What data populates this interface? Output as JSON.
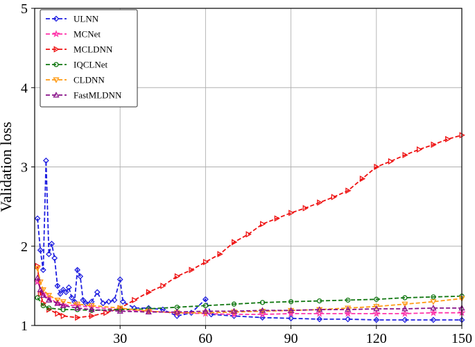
{
  "chart_data": {
    "type": "line",
    "title": "",
    "xlabel": "",
    "ylabel": "Validation loss",
    "xlim": [
      0,
      150
    ],
    "ylim": [
      1,
      5
    ],
    "xticks": [
      30,
      60,
      90,
      120,
      150
    ],
    "yticks": [
      1,
      2,
      3,
      4,
      5
    ],
    "x_tick_labels": [
      "30",
      "60",
      "90",
      "120",
      "150"
    ],
    "y_tick_labels": [
      "1",
      "2",
      "3",
      "4",
      "5"
    ],
    "grid": true,
    "legend_position": "top-left",
    "series": [
      {
        "name": "ULNN",
        "color": "#1f1fe0",
        "marker": "diamond",
        "points": [
          [
            1,
            2.35
          ],
          [
            2,
            1.95
          ],
          [
            3,
            1.7
          ],
          [
            4,
            3.08
          ],
          [
            5,
            1.9
          ],
          [
            6,
            2.03
          ],
          [
            7,
            1.85
          ],
          [
            8,
            1.5
          ],
          [
            9,
            1.4
          ],
          [
            10,
            1.45
          ],
          [
            11,
            1.42
          ],
          [
            12,
            1.48
          ],
          [
            13,
            1.35
          ],
          [
            14,
            1.3
          ],
          [
            15,
            1.7
          ],
          [
            16,
            1.62
          ],
          [
            17,
            1.32
          ],
          [
            18,
            1.28
          ],
          [
            20,
            1.3
          ],
          [
            22,
            1.42
          ],
          [
            24,
            1.28
          ],
          [
            26,
            1.3
          ],
          [
            28,
            1.32
          ],
          [
            30,
            1.58
          ],
          [
            31,
            1.3
          ],
          [
            35,
            1.22
          ],
          [
            40,
            1.22
          ],
          [
            45,
            1.2
          ],
          [
            50,
            1.12
          ],
          [
            55,
            1.16
          ],
          [
            60,
            1.33
          ],
          [
            62,
            1.14
          ],
          [
            70,
            1.12
          ],
          [
            80,
            1.1
          ],
          [
            90,
            1.09
          ],
          [
            100,
            1.08
          ],
          [
            110,
            1.08
          ],
          [
            120,
            1.07
          ],
          [
            130,
            1.07
          ],
          [
            140,
            1.07
          ],
          [
            150,
            1.07
          ]
        ]
      },
      {
        "name": "MCNet",
        "color": "#ff33aa",
        "marker": "star",
        "points": [
          [
            1,
            1.55
          ],
          [
            3,
            1.4
          ],
          [
            5,
            1.35
          ],
          [
            8,
            1.28
          ],
          [
            10,
            1.26
          ],
          [
            15,
            1.25
          ],
          [
            20,
            1.23
          ],
          [
            30,
            1.2
          ],
          [
            40,
            1.18
          ],
          [
            50,
            1.16
          ],
          [
            60,
            1.15
          ],
          [
            70,
            1.14
          ],
          [
            80,
            1.14
          ],
          [
            90,
            1.15
          ],
          [
            100,
            1.15
          ],
          [
            110,
            1.15
          ],
          [
            120,
            1.15
          ],
          [
            130,
            1.15
          ],
          [
            140,
            1.16
          ],
          [
            150,
            1.16
          ]
        ]
      },
      {
        "name": "MCLDNN",
        "color": "#ee1111",
        "marker": "triangle-right",
        "points": [
          [
            1,
            1.75
          ],
          [
            2,
            1.4
          ],
          [
            3,
            1.28
          ],
          [
            5,
            1.2
          ],
          [
            8,
            1.15
          ],
          [
            10,
            1.12
          ],
          [
            15,
            1.1
          ],
          [
            20,
            1.12
          ],
          [
            25,
            1.16
          ],
          [
            30,
            1.22
          ],
          [
            35,
            1.32
          ],
          [
            40,
            1.42
          ],
          [
            45,
            1.5
          ],
          [
            50,
            1.62
          ],
          [
            55,
            1.7
          ],
          [
            60,
            1.8
          ],
          [
            65,
            1.9
          ],
          [
            70,
            2.05
          ],
          [
            75,
            2.15
          ],
          [
            80,
            2.28
          ],
          [
            85,
            2.35
          ],
          [
            90,
            2.42
          ],
          [
            95,
            2.48
          ],
          [
            100,
            2.55
          ],
          [
            105,
            2.62
          ],
          [
            110,
            2.7
          ],
          [
            115,
            2.85
          ],
          [
            120,
            3.0
          ],
          [
            125,
            3.07
          ],
          [
            130,
            3.15
          ],
          [
            135,
            3.22
          ],
          [
            140,
            3.28
          ],
          [
            145,
            3.35
          ],
          [
            150,
            3.4
          ]
        ]
      },
      {
        "name": "IQCLNet",
        "color": "#117711",
        "marker": "circle",
        "points": [
          [
            1,
            1.35
          ],
          [
            3,
            1.25
          ],
          [
            5,
            1.22
          ],
          [
            10,
            1.2
          ],
          [
            15,
            1.2
          ],
          [
            20,
            1.19
          ],
          [
            30,
            1.2
          ],
          [
            40,
            1.21
          ],
          [
            50,
            1.23
          ],
          [
            60,
            1.25
          ],
          [
            70,
            1.27
          ],
          [
            80,
            1.29
          ],
          [
            90,
            1.3
          ],
          [
            100,
            1.31
          ],
          [
            110,
            1.32
          ],
          [
            120,
            1.33
          ],
          [
            130,
            1.35
          ],
          [
            140,
            1.36
          ],
          [
            150,
            1.37
          ]
        ]
      },
      {
        "name": "CLDNN",
        "color": "#ff9911",
        "marker": "triangle-down",
        "points": [
          [
            1,
            1.72
          ],
          [
            2,
            1.55
          ],
          [
            3,
            1.45
          ],
          [
            5,
            1.38
          ],
          [
            8,
            1.32
          ],
          [
            10,
            1.3
          ],
          [
            15,
            1.27
          ],
          [
            20,
            1.25
          ],
          [
            30,
            1.22
          ],
          [
            40,
            1.18
          ],
          [
            50,
            1.16
          ],
          [
            60,
            1.16
          ],
          [
            70,
            1.17
          ],
          [
            80,
            1.18
          ],
          [
            90,
            1.19
          ],
          [
            100,
            1.2
          ],
          [
            110,
            1.22
          ],
          [
            120,
            1.24
          ],
          [
            130,
            1.27
          ],
          [
            140,
            1.3
          ],
          [
            150,
            1.34
          ]
        ]
      },
      {
        "name": "FastMLDNN",
        "color": "#881188",
        "marker": "triangle-up",
        "points": [
          [
            1,
            1.6
          ],
          [
            2,
            1.45
          ],
          [
            3,
            1.38
          ],
          [
            5,
            1.32
          ],
          [
            8,
            1.28
          ],
          [
            10,
            1.25
          ],
          [
            15,
            1.22
          ],
          [
            20,
            1.2
          ],
          [
            30,
            1.18
          ],
          [
            40,
            1.17
          ],
          [
            50,
            1.17
          ],
          [
            60,
            1.18
          ],
          [
            70,
            1.18
          ],
          [
            80,
            1.19
          ],
          [
            90,
            1.19
          ],
          [
            100,
            1.2
          ],
          [
            110,
            1.2
          ],
          [
            120,
            1.21
          ],
          [
            130,
            1.21
          ],
          [
            140,
            1.22
          ],
          [
            150,
            1.22
          ]
        ]
      }
    ]
  }
}
